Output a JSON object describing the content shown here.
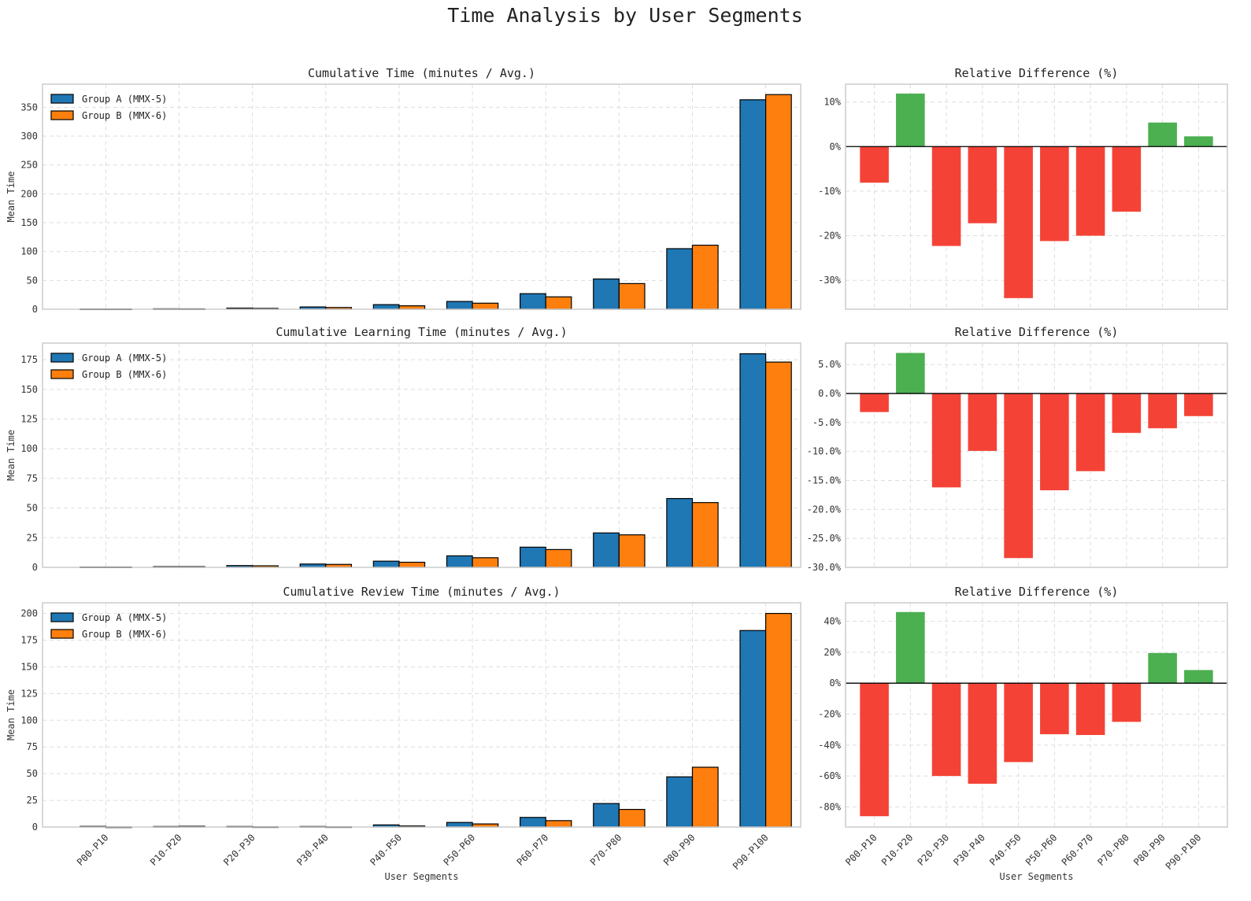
{
  "figure": {
    "title": "Time Analysis by User Segments"
  },
  "colors": {
    "group_a": "#1f77b4",
    "group_b": "#ff7f0e",
    "positive": "#4caf50",
    "negative": "#f44336",
    "grid": "#dddddd",
    "spine": "#cccccc"
  },
  "chart_data": [
    {
      "type": "bar",
      "title": "Cumulative Time (minutes / Avg.)",
      "xlabel": "",
      "ylabel": "Mean Time",
      "categories": [
        "P00-P10",
        "P10-P20",
        "P20-P30",
        "P30-P40",
        "P40-P50",
        "P50-P60",
        "P60-P70",
        "P70-P80",
        "P80-P90",
        "P90-P100"
      ],
      "series": [
        {
          "name": "Group A (MMX-5)",
          "values": [
            0.5,
            0.8,
            2.0,
            4.0,
            8.0,
            13.5,
            27.0,
            52.5,
            105.0,
            363.0
          ]
        },
        {
          "name": "Group B (MMX-6)",
          "values": [
            0.5,
            0.7,
            1.5,
            3.0,
            6.0,
            10.5,
            21.5,
            44.5,
            111.0,
            372.0
          ]
        }
      ],
      "ylim": [
        0,
        390
      ],
      "yticks": [
        0,
        50,
        100,
        150,
        200,
        250,
        300,
        350
      ],
      "ytick_labels": [
        "0",
        "50",
        "100",
        "150",
        "200",
        "250",
        "300",
        "350"
      ],
      "show_xticklabels": false,
      "grid": true,
      "legend": "top-left"
    },
    {
      "type": "bar",
      "title": "Relative Difference (%)",
      "xlabel": "",
      "ylabel": "",
      "categories": [
        "P00-P10",
        "P10-P20",
        "P20-P30",
        "P30-P40",
        "P40-P50",
        "P50-P60",
        "P60-P70",
        "P70-P80",
        "P80-P90",
        "P90-P100"
      ],
      "values": [
        -8.1,
        11.9,
        -22.3,
        -17.2,
        -34.0,
        -21.2,
        -20.0,
        -14.6,
        5.4,
        2.3
      ],
      "ylim": [
        -36.5,
        14
      ],
      "yticks": [
        10,
        0,
        -10,
        -20,
        -30
      ],
      "ytick_labels": [
        "10%",
        "0%",
        "-10%",
        "-20%",
        "-30%"
      ],
      "show_xticklabels": false,
      "grid": true
    },
    {
      "type": "bar",
      "title": "Cumulative Learning Time  (minutes / Avg.)",
      "xlabel": "",
      "ylabel": "Mean Time",
      "categories": [
        "P00-P10",
        "P10-P20",
        "P20-P30",
        "P30-P40",
        "P40-P50",
        "P50-P60",
        "P60-P70",
        "P70-P80",
        "P80-P90",
        "P90-P100"
      ],
      "series": [
        {
          "name": "Group A (MMX-5)",
          "values": [
            0.3,
            0.6,
            1.5,
            2.8,
            5.2,
            9.7,
            17.0,
            29.0,
            58.0,
            180.0
          ]
        },
        {
          "name": "Group B (MMX-6)",
          "values": [
            0.3,
            0.6,
            1.3,
            2.5,
            4.3,
            8.1,
            15.0,
            27.4,
            54.6,
            173.0
          ]
        }
      ],
      "ylim": [
        0,
        189
      ],
      "yticks": [
        0,
        25,
        50,
        75,
        100,
        125,
        150,
        175
      ],
      "ytick_labels": [
        "0",
        "25",
        "50",
        "75",
        "100",
        "125",
        "150",
        "175"
      ],
      "show_xticklabels": false,
      "grid": true,
      "legend": "top-left"
    },
    {
      "type": "bar",
      "title": "Relative Difference (%)",
      "xlabel": "",
      "ylabel": "",
      "categories": [
        "P00-P10",
        "P10-P20",
        "P20-P30",
        "P30-P40",
        "P40-P50",
        "P50-P60",
        "P60-P70",
        "P70-P80",
        "P80-P90",
        "P90-P100"
      ],
      "values": [
        -3.2,
        7.0,
        -16.2,
        -9.9,
        -28.4,
        -16.7,
        -13.4,
        -6.8,
        -6.0,
        -3.9
      ],
      "ylim": [
        -30,
        8.7
      ],
      "yticks": [
        5,
        0,
        -5,
        -10,
        -15,
        -20,
        -25,
        -30
      ],
      "ytick_labels": [
        "5.0%",
        "0.0%",
        "-5.0%",
        "-10.0%",
        "-15.0%",
        "-20.0%",
        "-25.0%",
        "-30.0%"
      ],
      "show_xticklabels": false,
      "grid": true
    },
    {
      "type": "bar",
      "title": "Cumulative Review Time  (minutes / Avg.)",
      "xlabel": "User Segments",
      "ylabel": "Mean Time",
      "categories": [
        "P00-P10",
        "P10-P20",
        "P20-P30",
        "P30-P40",
        "P40-P50",
        "P50-P60",
        "P60-P70",
        "P70-P80",
        "P80-P90",
        "P90-P100"
      ],
      "series": [
        {
          "name": "Group A (MMX-5)",
          "values": [
            0.6,
            0.5,
            0.5,
            0.5,
            2.0,
            4.3,
            9.0,
            22.0,
            47.0,
            184.0
          ]
        },
        {
          "name": "Group B (MMX-6)",
          "values": [
            0.1,
            0.7,
            0.2,
            0.2,
            1.0,
            2.9,
            6.0,
            16.5,
            56.0,
            200.0
          ]
        }
      ],
      "ylim": [
        0,
        210
      ],
      "yticks": [
        0,
        25,
        50,
        75,
        100,
        125,
        150,
        175,
        200
      ],
      "ytick_labels": [
        "0",
        "25",
        "50",
        "75",
        "100",
        "125",
        "150",
        "175",
        "200"
      ],
      "show_xticklabels": true,
      "grid": true,
      "legend": "top-left"
    },
    {
      "type": "bar",
      "title": "Relative Difference (%)",
      "xlabel": "User Segments",
      "ylabel": "",
      "categories": [
        "P00-P10",
        "P10-P20",
        "P20-P30",
        "P30-P40",
        "P40-P50",
        "P50-P60",
        "P60-P70",
        "P70-P80",
        "P80-P90",
        "P90-P100"
      ],
      "values": [
        -86.0,
        46.0,
        -60.0,
        -65.0,
        -51.0,
        -33.0,
        -33.5,
        -25.0,
        19.5,
        8.5
      ],
      "ylim": [
        -93,
        52
      ],
      "yticks": [
        40,
        20,
        0,
        -20,
        -40,
        -60,
        -80
      ],
      "ytick_labels": [
        "40%",
        "20%",
        "0%",
        "-20%",
        "-40%",
        "-60%",
        "-80%"
      ],
      "show_xticklabels": true,
      "grid": true
    }
  ]
}
